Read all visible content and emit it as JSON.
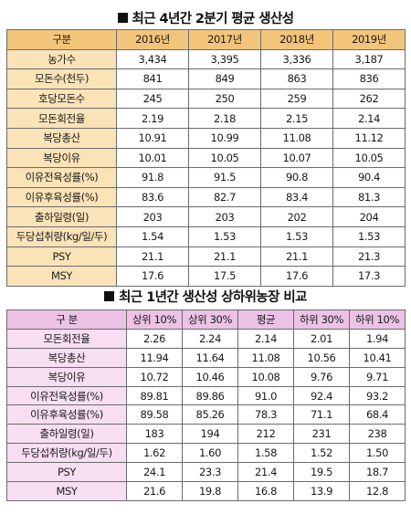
{
  "section1": {
    "title": "최근 4년간 2분기 평균 생산성",
    "header": [
      "구분",
      "2016년",
      "2017년",
      "2018년",
      "2019년"
    ],
    "rows": [
      {
        "label": "농가수",
        "values": [
          "3,434",
          "3,395",
          "3,336",
          "3,187"
        ]
      },
      {
        "label": "모돈수(천두)",
        "values": [
          "841",
          "849",
          "863",
          "836"
        ]
      },
      {
        "label": "호당모돈수",
        "values": [
          "245",
          "250",
          "259",
          "262"
        ]
      },
      {
        "label": "모돈회전율",
        "values": [
          "2.19",
          "2.18",
          "2.15",
          "2.14"
        ]
      },
      {
        "label": "복당총산",
        "values": [
          "10.91",
          "10.99",
          "11.08",
          "11.12"
        ]
      },
      {
        "label": "복당이유",
        "values": [
          "10.01",
          "10.05",
          "10.07",
          "10.05"
        ]
      },
      {
        "label": "이유전육성률(%)",
        "values": [
          "91.8",
          "91.5",
          "90.8",
          "90.4"
        ]
      },
      {
        "label": "이유후육성률(%)",
        "values": [
          "83.6",
          "82.7",
          "83.4",
          "81.3"
        ]
      },
      {
        "label": "출하일령(일)",
        "values": [
          "203",
          "203",
          "202",
          "204"
        ]
      },
      {
        "label": "두당섭취량(kg/일/두)",
        "values": [
          "1.54",
          "1.53",
          "1.53",
          "1.53"
        ]
      },
      {
        "label": "PSY",
        "values": [
          "21.1",
          "21.1",
          "21.1",
          "21.3"
        ]
      },
      {
        "label": "MSY",
        "values": [
          "17.6",
          "17.5",
          "17.6",
          "17.3"
        ]
      }
    ]
  },
  "section2": {
    "title": "최근 1년간 생산성 상하위농장 비교",
    "header": [
      "구 분",
      "상위 10%",
      "상위 30%",
      "평균",
      "하위 30%",
      "하위 10%"
    ],
    "rows": [
      {
        "label": "모돈회전율",
        "values": [
          "2.26",
          "2.24",
          "2.14",
          "2.01",
          "1.94"
        ]
      },
      {
        "label": "복당총산",
        "values": [
          "11.94",
          "11.64",
          "11.08",
          "10.56",
          "10.41"
        ]
      },
      {
        "label": "복당이유",
        "values": [
          "10.72",
          "10.46",
          "10.08",
          "9.76",
          "9.71"
        ]
      },
      {
        "label": "이유전육성률(%)",
        "values": [
          "89.81",
          "89.86",
          "91.0",
          "92.4",
          "93.2"
        ]
      },
      {
        "label": "이유후육성률(%)",
        "values": [
          "89.58",
          "85.26",
          "78.3",
          "71.1",
          "68.4"
        ]
      },
      {
        "label": "출하일령(일)",
        "values": [
          "183",
          "194",
          "212",
          "231",
          "238"
        ]
      },
      {
        "label": "두당섭취량(kg/일/두)",
        "values": [
          "1.62",
          "1.60",
          "1.58",
          "1.52",
          "1.50"
        ]
      },
      {
        "label": "PSY",
        "values": [
          "24.1",
          "23.3",
          "21.4",
          "19.5",
          "18.7"
        ]
      },
      {
        "label": "MSY",
        "values": [
          "21.6",
          "19.8",
          "16.8",
          "13.9",
          "12.8"
        ]
      }
    ]
  }
}
